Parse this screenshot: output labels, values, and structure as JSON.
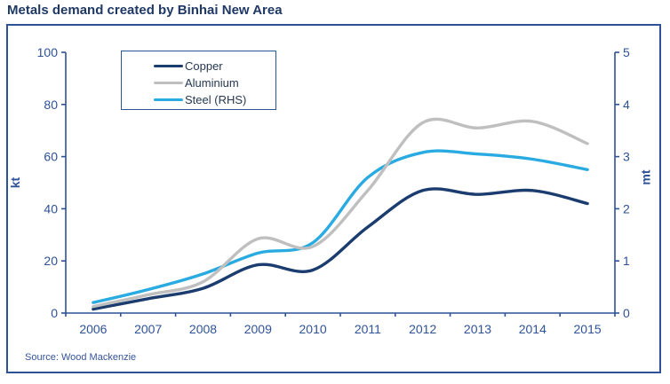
{
  "title": "Metals demand created by Binhai New Area",
  "source": "Source: Wood Mackenzie",
  "colors": {
    "title": "#1F3864",
    "axis": "#2E5296",
    "border": "#2E5296",
    "legend_text": "#253850",
    "copper": "#1B3C6E",
    "aluminium": "#BFBFBF",
    "steel": "#29ABE2"
  },
  "chart_data": {
    "type": "line",
    "smooth": true,
    "grid": false,
    "legend_position": "top-left-inside",
    "x": [
      2006,
      2007,
      2008,
      2009,
      2010,
      2011,
      2012,
      2013,
      2014,
      2015
    ],
    "series": [
      {
        "name": "Copper",
        "axis": "left",
        "color_key": "copper",
        "values": [
          1.5,
          5.5,
          9.5,
          18.5,
          16.5,
          33,
          47,
          45.5,
          47,
          42
        ]
      },
      {
        "name": "Aluminium",
        "axis": "left",
        "color_key": "aluminium",
        "values": [
          2.5,
          7,
          12,
          28.5,
          25.5,
          47,
          73,
          71,
          73.5,
          65
        ]
      },
      {
        "name": "Steel (RHS)",
        "axis": "right",
        "color_key": "steel",
        "values": [
          0.2,
          0.45,
          0.75,
          1.15,
          1.35,
          2.6,
          3.08,
          3.05,
          2.95,
          2.75
        ]
      }
    ],
    "left_axis": {
      "label": "kt",
      "min": 0,
      "max": 100,
      "ticks": [
        0,
        20,
        40,
        60,
        80,
        100
      ]
    },
    "right_axis": {
      "label": "mt",
      "min": 0,
      "max": 5,
      "ticks": [
        0,
        1,
        2,
        3,
        4,
        5
      ]
    }
  }
}
